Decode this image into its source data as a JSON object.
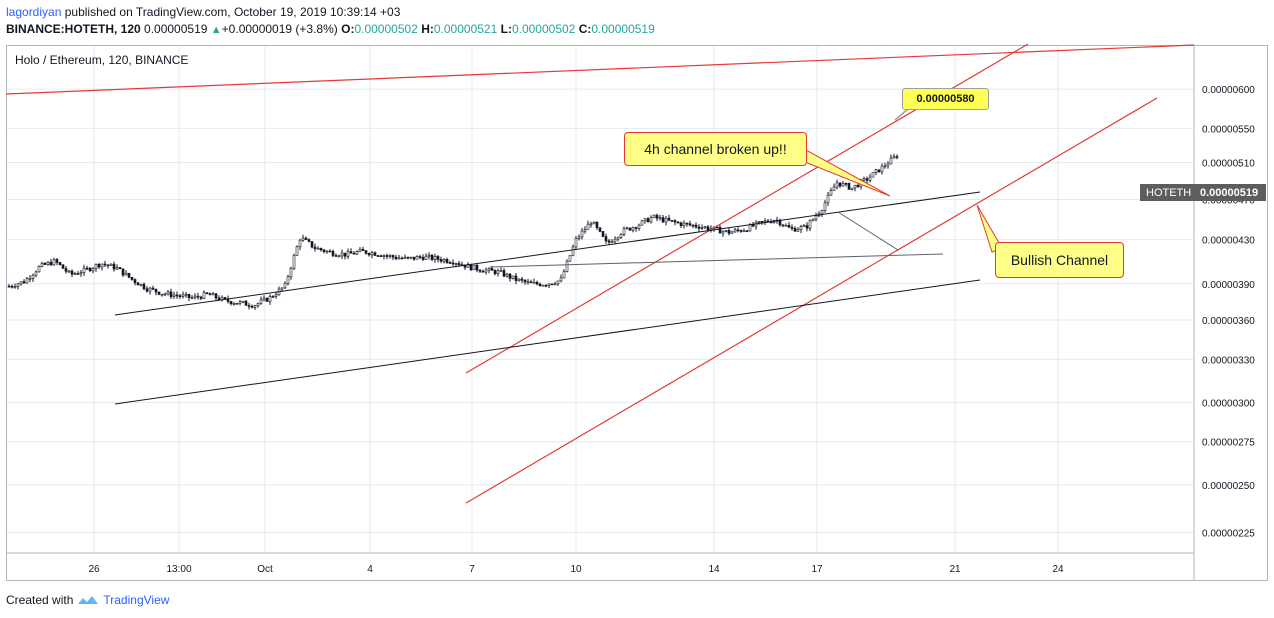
{
  "header": {
    "author": "lagordiyan",
    "published_text": "published on TradingView.com, October 19, 2019 10:39:14 +03",
    "symbol_line": "BINANCE:HOTETH, 120",
    "last_price": "0.00000519",
    "change": "+0.00000019 (+3.8%)",
    "o_label": "O:",
    "o_value": "0.00000502",
    "h_label": "H:",
    "h_value": "0.00000521",
    "l_label": "L:",
    "l_value": "0.00000502",
    "c_label": "C:",
    "c_value": "0.00000519"
  },
  "chart_title": "Holo / Ethereum, 120, BINANCE",
  "price_tag": "0.00000580",
  "symbol_label": {
    "symbol": "HOTETH",
    "value": "0.00000519"
  },
  "annotations": {
    "channel_broken": "4h channel broken up!!",
    "bullish_channel": "Bullish Channel"
  },
  "footer": {
    "created_with": "Created with",
    "brand": "TradingView"
  },
  "colors": {
    "candle": "#131722",
    "red_line": "#e53935",
    "black_line": "#131722",
    "grid": "#e1ecf2",
    "callout_bg": "#ffff88",
    "tag_bg": "#ffff55"
  },
  "chart_data": {
    "type": "line",
    "title": "Holo / Ethereum, 120, BINANCE",
    "xlabel": "",
    "ylabel": "",
    "y_scale": "log",
    "x_tick_labels": [
      "26",
      "13:00",
      "Oct",
      "4",
      "7",
      "10",
      "14",
      "17",
      "21",
      "24"
    ],
    "y_tick_labels": [
      "0.00000600",
      "0.00000550",
      "0.00000510",
      "0.00000470",
      "0.00000430",
      "0.00000390",
      "0.00000360",
      "0.00000330",
      "0.00000300",
      "0.00000275",
      "0.00000250",
      "0.00000225"
    ],
    "y_ticks": [
      6e-06,
      5.5e-06,
      5.1e-06,
      4.7e-06,
      4.3e-06,
      3.9e-06,
      3.6e-06,
      3.3e-06,
      3e-06,
      2.75e-06,
      2.5e-06,
      2.25e-06
    ],
    "ylim": [
      2.15e-06,
      6.6e-06
    ],
    "grid": true,
    "series": [
      {
        "type": "price",
        "values": [
          3.88e-06,
          3.92e-06,
          4.05e-06,
          4.1e-06,
          3.98e-06,
          4.02e-06,
          4.08e-06,
          4.04e-06,
          3.94e-06,
          3.86e-06,
          3.82e-06,
          3.8e-06,
          3.78e-06,
          3.81e-06,
          3.76e-06,
          3.74e-06,
          3.72e-06,
          3.78e-06,
          3.88e-06,
          4.32e-06,
          4.22e-06,
          4.18e-06,
          4.16e-06,
          4.19e-06,
          4.17e-06,
          4.14e-06,
          4.12e-06,
          4.14e-06,
          4.12e-06,
          4.1e-06,
          4.05e-06,
          4.02e-06,
          4e-06,
          3.94e-06,
          3.9e-06,
          3.9e-06,
          3.93e-06,
          4.3e-06,
          4.48e-06,
          4.26e-06,
          4.38e-06,
          4.44e-06,
          4.52e-06,
          4.48e-06,
          4.45e-06,
          4.43e-06,
          4.4e-06,
          4.37e-06,
          4.4e-06,
          4.46e-06,
          4.5e-06,
          4.4e-06,
          4.42e-06,
          4.6e-06,
          4.88e-06,
          4.82e-06,
          4.92e-06,
          5.05e-06,
          5.19e-06
        ]
      }
    ]
  }
}
